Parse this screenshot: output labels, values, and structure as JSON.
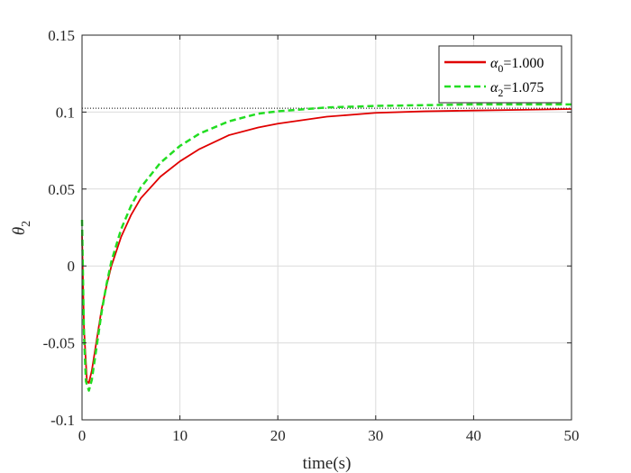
{
  "chart_data": {
    "type": "line",
    "title": "",
    "xlabel": "time(s)",
    "ylabel": {
      "symbol": "θ",
      "sub": "2"
    },
    "xlim": [
      0,
      50
    ],
    "ylim": [
      -0.1,
      0.15
    ],
    "xticks": [
      0,
      10,
      20,
      30,
      40,
      50
    ],
    "xtick_labels": [
      "0",
      "10",
      "20",
      "30",
      "40",
      "50"
    ],
    "yticks": [
      -0.1,
      -0.05,
      0,
      0.05,
      0.1,
      0.15
    ],
    "ytick_labels": [
      "-0.1",
      "-0.05",
      "0",
      "0.05",
      "0.1",
      "0.15"
    ],
    "grid": true,
    "legend_position": "top-right",
    "reference_line": {
      "y": 0.1025,
      "style": "dotted",
      "color": "#000000"
    },
    "series": [
      {
        "name": {
          "symbol": "α",
          "sub": "0",
          "rest": "=1.000"
        },
        "color": "#e00000",
        "style": "solid",
        "x": [
          0,
          0.2,
          0.5,
          0.7,
          1,
          1.5,
          2,
          2.5,
          3,
          4,
          5,
          6,
          8,
          10,
          12,
          15,
          18,
          20,
          25,
          30,
          35,
          40,
          45,
          50
        ],
        "y": [
          0.02,
          -0.04,
          -0.075,
          -0.076,
          -0.068,
          -0.048,
          -0.028,
          -0.013,
          0.0,
          0.019,
          0.033,
          0.044,
          0.058,
          0.068,
          0.076,
          0.085,
          0.09,
          0.0925,
          0.097,
          0.0995,
          0.1005,
          0.101,
          0.1015,
          0.102
        ]
      },
      {
        "name": {
          "symbol": "α",
          "sub": "2",
          "rest": "=1.075"
        },
        "color": "#22dd22",
        "style": "dashed",
        "x": [
          0,
          0.2,
          0.4,
          0.7,
          1,
          1.5,
          2,
          2.5,
          3,
          4,
          5,
          6,
          8,
          10,
          12,
          15,
          18,
          20,
          25,
          30,
          35,
          40,
          45,
          50
        ],
        "y": [
          0.03,
          -0.045,
          -0.075,
          -0.081,
          -0.074,
          -0.052,
          -0.03,
          -0.012,
          0.003,
          0.024,
          0.039,
          0.051,
          0.067,
          0.078,
          0.086,
          0.094,
          0.099,
          0.1005,
          0.103,
          0.104,
          0.1045,
          0.105,
          0.105,
          0.105
        ]
      }
    ]
  }
}
